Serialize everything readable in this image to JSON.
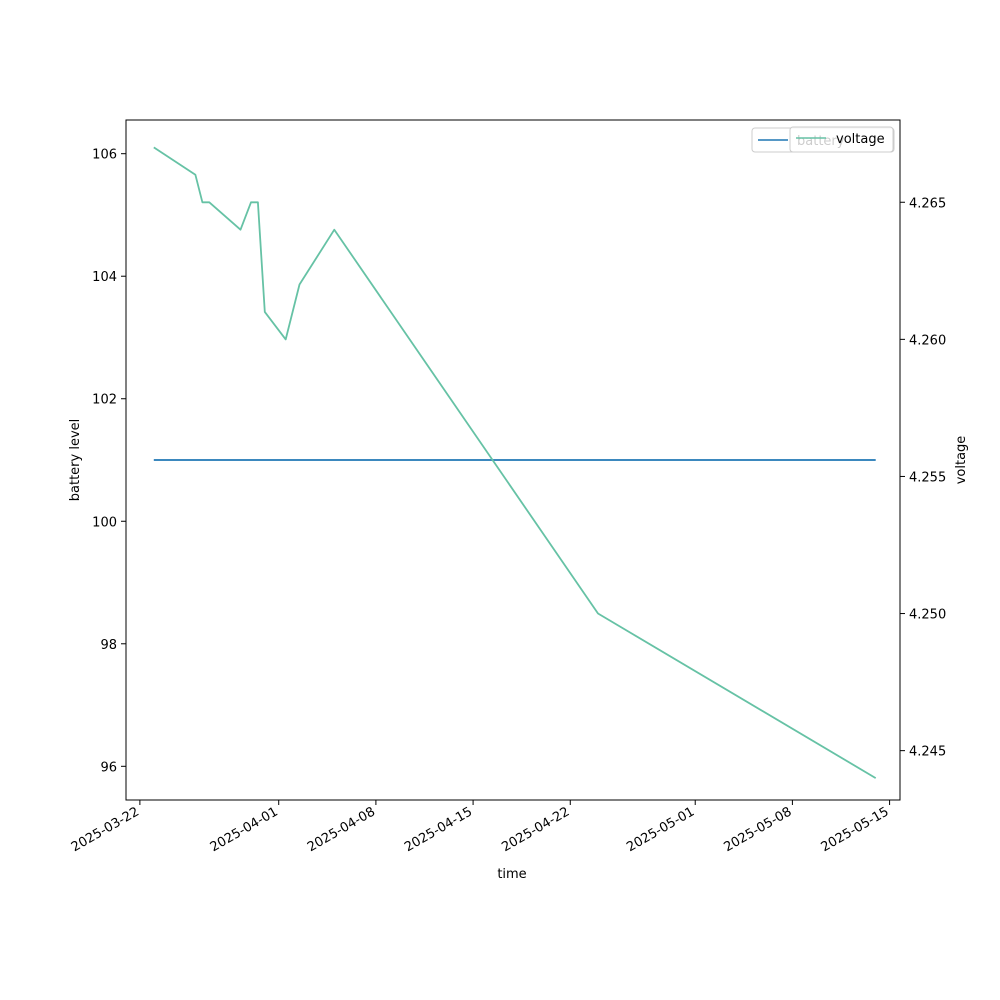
{
  "chart_data": {
    "type": "line",
    "title": "",
    "xlabel": "time",
    "ylabel_left": "battery level",
    "ylabel_right": "voltage",
    "x_ticks": [
      "2025-03-22",
      "2025-04-01",
      "2025-04-08",
      "2025-04-15",
      "2025-04-22",
      "2025-05-01",
      "2025-05-08",
      "2025-05-15"
    ],
    "y_left_ticks": [
      "96",
      "98",
      "100",
      "102",
      "104",
      "106"
    ],
    "y_right_ticks": [
      "4.245",
      "4.250",
      "4.255",
      "4.260",
      "4.265"
    ],
    "xlim": [
      "2025-03-21",
      "2025-05-15T18:00"
    ],
    "ylim_left": [
      95.45,
      106.55
    ],
    "ylim_right": [
      4.2432,
      4.268
    ],
    "grid": false,
    "legend_position": "upper right",
    "series": [
      {
        "name": "battery",
        "axis": "left",
        "color": "#1f77b4",
        "x": [
          "2025-03-23",
          "2025-05-14"
        ],
        "y": [
          101,
          101
        ]
      },
      {
        "name": "voltage",
        "axis": "right",
        "color": "#66c2a5",
        "x": [
          "2025-03-23",
          "2025-03-26",
          "2025-03-26T12:00",
          "2025-03-27",
          "2025-03-29T06:00",
          "2025-03-30",
          "2025-03-30T12:00",
          "2025-03-31",
          "2025-04-01T12:00",
          "2025-04-02T12:00",
          "2025-04-05",
          "2025-04-24",
          "2025-05-14"
        ],
        "y": [
          4.267,
          4.266,
          4.265,
          4.265,
          4.264,
          4.265,
          4.265,
          4.261,
          4.26,
          4.262,
          4.264,
          4.25,
          4.244
        ]
      }
    ]
  }
}
